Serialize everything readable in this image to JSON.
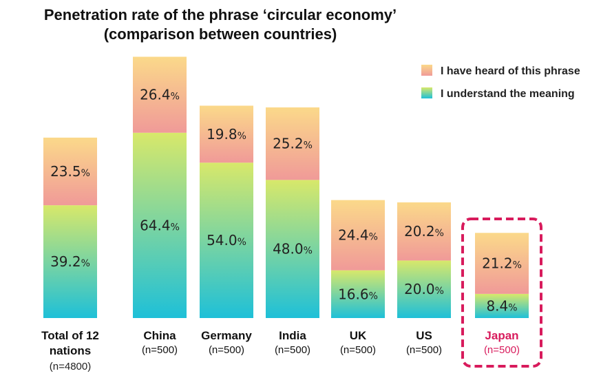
{
  "title_line1": "Penetration rate of the phrase ‘circular economy’",
  "title_line2": "(comparison between countries)",
  "chart_data": {
    "type": "bar",
    "stacked": true,
    "categories": [
      "Total of 12 nations",
      "China",
      "Germany",
      "India",
      "UK",
      "US",
      "Japan"
    ],
    "category_sample_sizes": [
      "(n=4800)",
      "(n=500)",
      "(n=500)",
      "(n=500)",
      "(n=500)",
      "(n=500)",
      "(n=500)"
    ],
    "series": [
      {
        "name": "I understand the meaning",
        "values": [
          39.2,
          64.4,
          54.0,
          48.0,
          16.6,
          20.0,
          8.4
        ],
        "labels": [
          "39.2",
          "64.4",
          "54.0",
          "48.0",
          "16.6",
          "20.0",
          "8.4"
        ]
      },
      {
        "name": "I have heard of this phrase",
        "values": [
          23.5,
          26.4,
          19.8,
          25.2,
          24.4,
          20.2,
          21.2
        ],
        "labels": [
          "23.5",
          "26.4",
          "19.8",
          "25.2",
          "24.4",
          "20.2",
          "21.2"
        ]
      }
    ],
    "value_suffix": "%",
    "highlight_category": "Japan",
    "legend_position": "top-right",
    "grid": false,
    "ylim": [
      0,
      100
    ]
  },
  "colors": {
    "understand_top": "#d8e86a",
    "understand_bottom": "#1ec0d8",
    "heard_top": "#fbd98a",
    "heard_bottom": "#f09a98",
    "highlight": "#d81b5c",
    "text": "#111111"
  }
}
